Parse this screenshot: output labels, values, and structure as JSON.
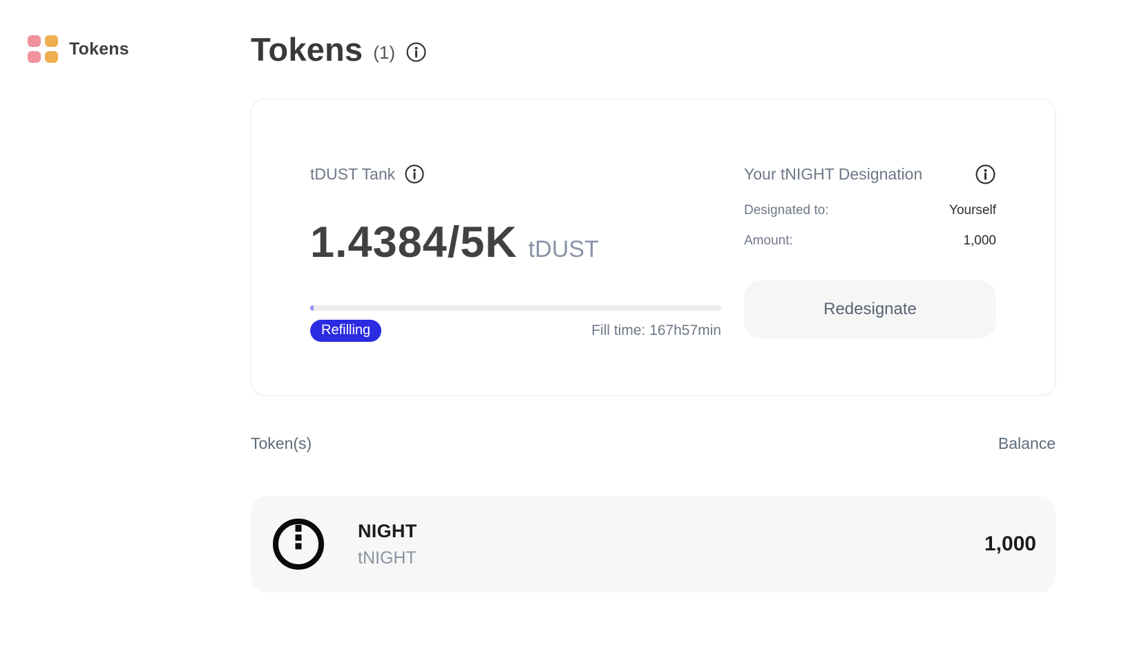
{
  "colors": {
    "accent_blue": "#2B2BE2",
    "progress_fill": "#8C8FF0",
    "grid_icon_pink": "#F0929E",
    "grid_icon_orange": "#EFAF50"
  },
  "sidebar": {
    "app_label": "Tokens"
  },
  "header": {
    "title": "Tokens",
    "count": "(1)"
  },
  "tank_card": {
    "title": "tDUST Tank",
    "amount": "1.4384/5K",
    "unit": "tDUST",
    "current": 1.4384,
    "capacity": 5000,
    "status_badge": "Refilling",
    "fill_time": "Fill time: 167h57min"
  },
  "designation": {
    "title": "Your tNIGHT Designation",
    "designated_to_label": "Designated to:",
    "designated_to_value": "Yourself",
    "amount_label": "Amount:",
    "amount_value": "1,000",
    "button_label": "Redesignate"
  },
  "token_list": {
    "column_left": "Token(s)",
    "column_right": "Balance",
    "tokens": [
      {
        "name": "NIGHT",
        "symbol": "tNIGHT",
        "balance": "1,000"
      }
    ]
  }
}
